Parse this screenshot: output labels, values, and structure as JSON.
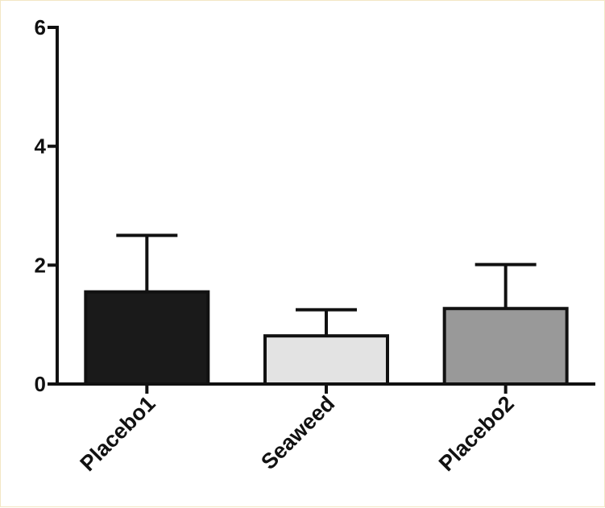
{
  "chart_data": {
    "type": "bar",
    "categories": [
      "Placebo1",
      "Seaweed",
      "Placebo2"
    ],
    "values": [
      1.55,
      0.81,
      1.27
    ],
    "error_upper": [
      2.5,
      1.25,
      2.01
    ],
    "bar_colors": [
      "#1a1a1a",
      "#e3e3e3",
      "#999999"
    ],
    "ylim": [
      0,
      6
    ],
    "yticks": [
      "0",
      "2",
      "4",
      "6"
    ],
    "grid": false,
    "legend": "none"
  }
}
